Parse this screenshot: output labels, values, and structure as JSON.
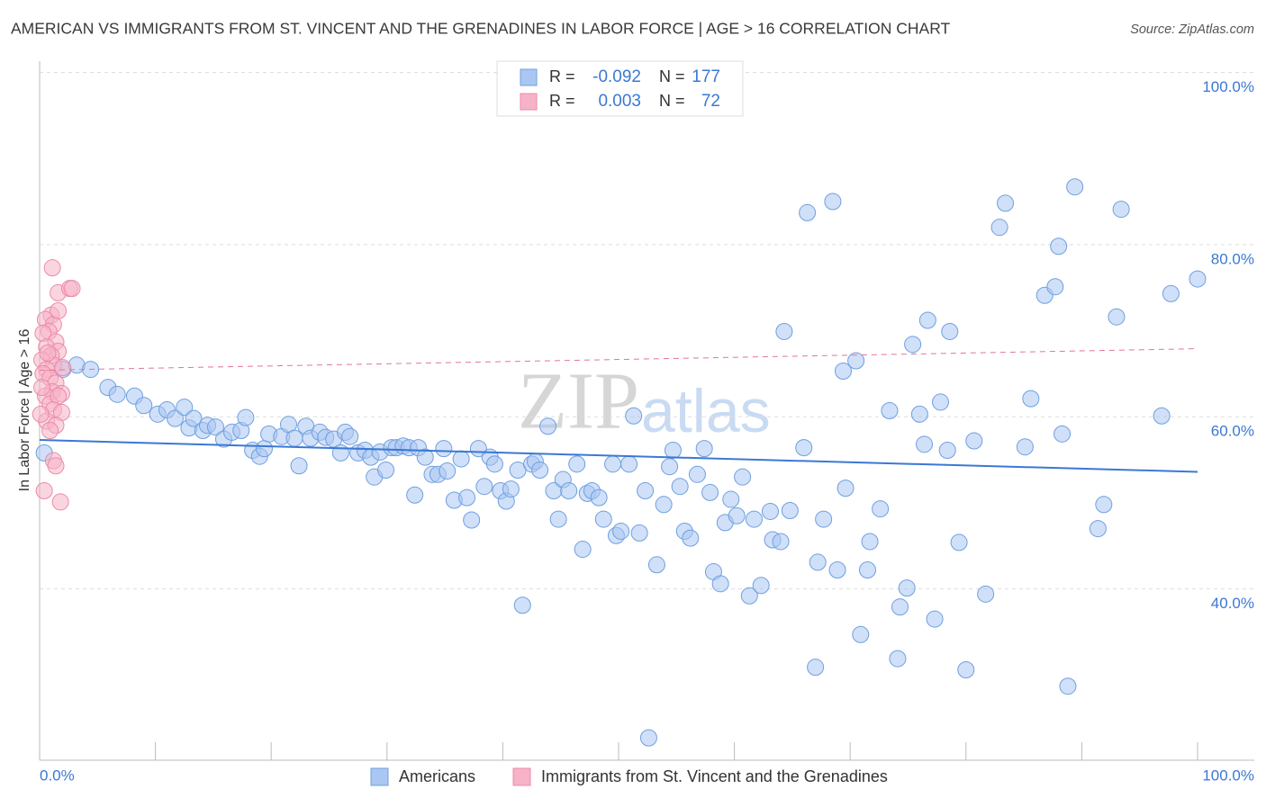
{
  "chart_data": {
    "type": "scatter",
    "title": "AMERICAN VS IMMIGRANTS FROM ST. VINCENT AND THE GRENADINES IN LABOR FORCE | AGE > 16 CORRELATION CHART",
    "source": "Source: ZipAtlas.com",
    "y_label": "In Labor Force | Age > 16",
    "watermark": [
      "ZIP",
      "atlas"
    ],
    "xlim": [
      0,
      100
    ],
    "ylim": [
      20.1,
      101.3
    ],
    "xticks": [
      {
        "value": 0,
        "label": "0.0%"
      },
      {
        "value": 100,
        "label": "100.0%"
      }
    ],
    "x_minor_ticks": [
      10,
      20,
      30,
      40,
      50,
      60,
      70,
      80,
      90
    ],
    "yticks": [
      {
        "value": 40,
        "label": "40.0%"
      },
      {
        "value": 60,
        "label": "60.0%"
      },
      {
        "value": 80,
        "label": "80.0%"
      },
      {
        "value": 100,
        "label": "100.0%"
      }
    ],
    "grid": true,
    "legend_stats": [
      {
        "r_label": "R =",
        "r": -0.092,
        "n_label": "N =",
        "n": 177
      },
      {
        "r_label": "R =",
        "r": 0.003,
        "n_label": "N =",
        "n": 72
      }
    ],
    "series": [
      {
        "name": "Americans",
        "color": "#a9c7f2",
        "stroke": "#6f9fe0",
        "line_color": "#3b78d4",
        "dashed": false,
        "x": [
          0.4,
          2.0,
          3.2,
          4.4,
          5.9,
          6.7,
          8.2,
          9.0,
          10.2,
          11.0,
          11.7,
          12.5,
          12.9,
          13.3,
          14.1,
          14.5,
          15.2,
          15.9,
          16.6,
          17.4,
          17.8,
          18.4,
          19.0,
          19.4,
          19.8,
          20.9,
          21.5,
          22.0,
          22.4,
          23.0,
          23.4,
          24.2,
          24.7,
          25.4,
          26.0,
          26.4,
          26.8,
          27.5,
          28.1,
          28.6,
          28.9,
          29.4,
          29.9,
          30.4,
          30.8,
          31.4,
          31.9,
          32.4,
          32.7,
          33.3,
          33.9,
          34.4,
          34.9,
          35.2,
          35.8,
          36.4,
          36.9,
          37.3,
          37.9,
          38.4,
          38.9,
          39.3,
          39.8,
          40.3,
          40.7,
          41.3,
          41.7,
          42.5,
          42.8,
          43.2,
          43.9,
          44.4,
          44.8,
          45.2,
          45.7,
          46.4,
          46.9,
          47.3,
          47.7,
          48.3,
          48.7,
          49.5,
          49.8,
          50.2,
          50.9,
          51.3,
          51.8,
          52.3,
          53.3,
          53.9,
          54.4,
          54.7,
          55.3,
          55.7,
          56.2,
          56.8,
          57.4,
          57.9,
          58.2,
          58.8,
          59.2,
          59.7,
          60.2,
          60.7,
          61.3,
          61.7,
          62.3,
          63.1,
          63.3,
          64.0,
          64.3,
          64.8,
          66.0,
          66.3,
          67.0,
          67.2,
          67.7,
          68.5,
          68.9,
          69.4,
          69.6,
          70.5,
          70.9,
          71.7,
          71.5,
          72.6,
          73.4,
          74.1,
          74.3,
          74.9,
          75.4,
          76.0,
          76.4,
          76.7,
          77.3,
          77.8,
          78.4,
          78.6,
          79.4,
          80.0,
          80.7,
          81.7,
          82.9,
          83.4,
          85.1,
          85.6,
          86.8,
          87.7,
          88.0,
          88.3,
          88.8,
          89.4,
          91.4,
          91.9,
          93.0,
          93.4,
          96.9,
          97.7,
          100.0,
          52.6
        ],
        "values": [
          55.8,
          65.5,
          66.0,
          65.5,
          63.4,
          62.6,
          62.4,
          61.3,
          60.3,
          60.8,
          59.8,
          61.1,
          58.7,
          59.8,
          58.4,
          59.0,
          58.8,
          57.4,
          58.2,
          58.4,
          59.9,
          56.1,
          55.4,
          56.3,
          58.0,
          57.7,
          59.1,
          57.5,
          54.3,
          58.9,
          57.5,
          58.2,
          57.6,
          57.4,
          55.8,
          58.2,
          57.7,
          55.8,
          56.1,
          55.3,
          53.0,
          55.9,
          53.8,
          56.4,
          56.4,
          56.6,
          56.4,
          50.9,
          56.4,
          55.3,
          53.3,
          53.3,
          56.3,
          53.7,
          50.3,
          55.1,
          50.6,
          48.0,
          56.3,
          51.9,
          55.3,
          54.5,
          51.4,
          50.2,
          51.6,
          53.8,
          38.1,
          54.5,
          54.8,
          53.8,
          58.9,
          51.4,
          48.1,
          52.7,
          51.4,
          54.5,
          44.6,
          51.1,
          51.4,
          50.6,
          48.1,
          54.5,
          46.2,
          46.7,
          54.5,
          60.1,
          46.5,
          51.4,
          42.8,
          49.8,
          54.2,
          56.1,
          51.9,
          46.7,
          45.9,
          53.3,
          56.3,
          51.2,
          42.0,
          40.6,
          47.7,
          50.4,
          48.5,
          53.0,
          39.2,
          48.1,
          40.4,
          49.0,
          45.7,
          45.5,
          69.9,
          49.1,
          56.4,
          83.7,
          30.9,
          43.1,
          48.1,
          85.0,
          42.2,
          65.3,
          51.7,
          66.5,
          34.7,
          45.5,
          42.2,
          49.3,
          60.7,
          31.9,
          37.9,
          40.1,
          68.4,
          60.3,
          56.8,
          71.2,
          36.5,
          61.7,
          56.1,
          69.9,
          45.4,
          30.6,
          57.2,
          39.4,
          82.0,
          84.8,
          56.5,
          62.1,
          74.1,
          75.1,
          79.8,
          58.0,
          28.7,
          86.7,
          47.0,
          49.8,
          71.6,
          84.1,
          60.1,
          74.3,
          76.0,
          22.7
        ],
        "trend": {
          "x": [
            0,
            100
          ],
          "values": [
            57.3,
            53.6
          ]
        }
      },
      {
        "name": "Immigrants from St. Vincent and the Grenadines",
        "color": "#f6b3c7",
        "stroke": "#ec8aa9",
        "line_color": "#e27596",
        "dashed": true,
        "x": [
          1.1,
          1.6,
          2.6,
          2.8,
          1.0,
          0.5,
          1.2,
          0.8,
          0.3,
          1.4,
          0.6,
          1.6,
          1.0,
          0.2,
          1.2,
          0.6,
          2.0,
          0.3,
          0.9,
          1.4,
          1.1,
          1.9,
          0.5,
          0.9,
          1.6,
          1.2,
          1.9,
          0.6,
          1.4,
          0.9,
          1.2,
          1.4,
          0.4,
          1.8,
          0.2,
          0.7,
          0.1,
          1.6
        ],
        "values": [
          77.3,
          74.4,
          74.9,
          74.9,
          71.8,
          71.3,
          70.7,
          69.9,
          69.7,
          68.7,
          68.1,
          67.6,
          67.1,
          66.6,
          66.0,
          65.5,
          65.7,
          65.0,
          64.5,
          63.9,
          62.9,
          62.7,
          62.4,
          61.5,
          62.4,
          60.8,
          60.5,
          59.5,
          59.0,
          58.4,
          54.9,
          54.3,
          51.4,
          50.1,
          63.4,
          67.4,
          60.3,
          72.3
        ],
        "trend": {
          "x": [
            0,
            100
          ],
          "values": [
            65.4,
            67.9
          ]
        }
      }
    ]
  }
}
